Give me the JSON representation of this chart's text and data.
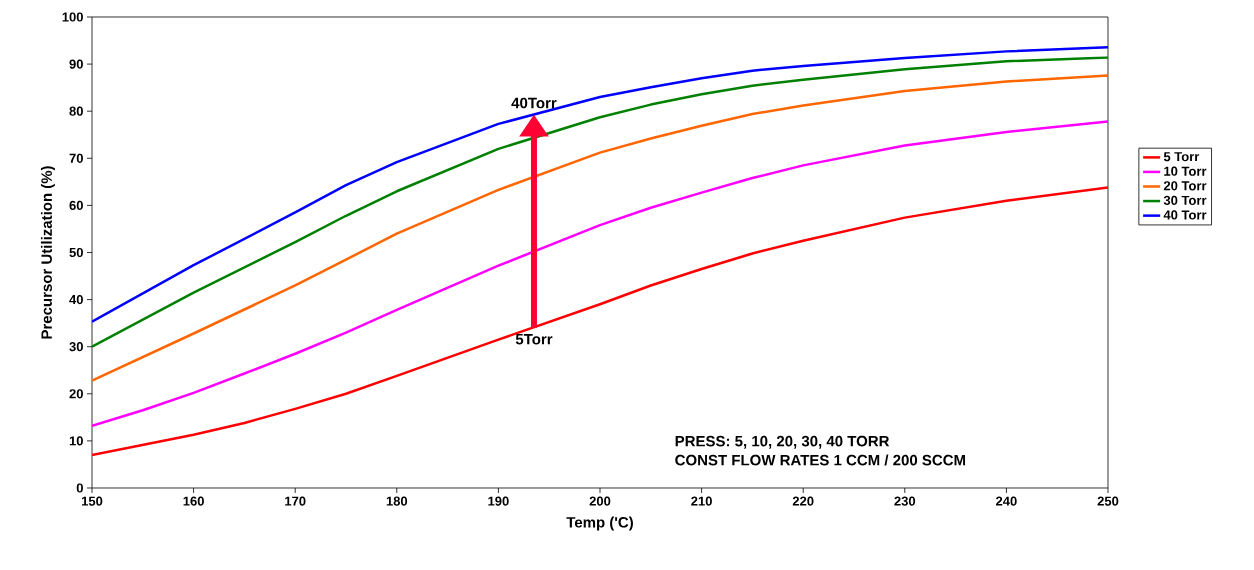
{
  "chart_data": {
    "type": "line",
    "xlabel": "Temp ('C)",
    "ylabel": "Precursor Utilization (%)",
    "xlim": [
      150,
      250
    ],
    "xticks": [
      150,
      160,
      170,
      180,
      190,
      200,
      210,
      220,
      230,
      240,
      250
    ],
    "ylim": [
      0,
      100
    ],
    "yticks": [
      0,
      10,
      20,
      30,
      40,
      50,
      60,
      70,
      80,
      90,
      100
    ],
    "grid": false,
    "legend": "right",
    "marker": "none",
    "line_style": "solid",
    "series": [
      {
        "name": "5 Torr",
        "color": "#ff0000",
        "x": [
          150,
          160,
          165,
          170,
          175,
          180,
          190,
          200,
          205,
          210,
          215,
          220,
          230,
          240,
          250
        ],
        "values": [
          7,
          11.3,
          13.8,
          16.8,
          20,
          23.8,
          31.5,
          39,
          43,
          46.5,
          49.8,
          52.5,
          57.4,
          61,
          63.8
        ]
      },
      {
        "name": "10 Torr",
        "color": "#ff00ff",
        "x": [
          150,
          155,
          160,
          165,
          170,
          175,
          180,
          190,
          200,
          205,
          210,
          215,
          220,
          230,
          240,
          250
        ],
        "values": [
          13.2,
          16.5,
          20.2,
          24.3,
          28.5,
          33,
          37.8,
          47.2,
          55.8,
          59.5,
          62.7,
          65.8,
          68.5,
          72.7,
          75.6,
          77.8
        ]
      },
      {
        "name": "20 Torr",
        "color": "#ff6600",
        "x": [
          150,
          160,
          170,
          175,
          180,
          190,
          200,
          205,
          210,
          215,
          220,
          230,
          240,
          250
        ],
        "values": [
          22.8,
          32.8,
          43,
          48.5,
          54,
          63.3,
          71.2,
          74.2,
          76.9,
          79.4,
          81.2,
          84.3,
          86.3,
          87.6
        ]
      },
      {
        "name": "30 Torr",
        "color": "#008000",
        "x": [
          150,
          160,
          170,
          175,
          180,
          190,
          200,
          205,
          210,
          215,
          220,
          230,
          240,
          250
        ],
        "values": [
          30,
          41.5,
          52.2,
          57.8,
          63,
          72,
          78.7,
          81.4,
          83.6,
          85.4,
          86.7,
          88.9,
          90.6,
          91.4
        ]
      },
      {
        "name": "40 Torr",
        "color": "#0000ff",
        "x": [
          150,
          160,
          170,
          175,
          180,
          190,
          200,
          205,
          210,
          215,
          220,
          230,
          240,
          250
        ],
        "values": [
          35.3,
          47.3,
          58.5,
          64.3,
          69.2,
          77.3,
          83,
          85.1,
          87,
          88.6,
          89.6,
          91.3,
          92.7,
          93.6
        ]
      }
    ],
    "annotations": [
      {
        "text": "40Torr",
        "x": 193.5,
        "y": 79.3
      },
      {
        "text": "5Torr",
        "x": 193.5,
        "y": 34
      },
      "PRESS: 5, 10, 20, 30, 40 TORR",
      "CONST FLOW RATES 1 CCM / 200 SCCM"
    ]
  }
}
